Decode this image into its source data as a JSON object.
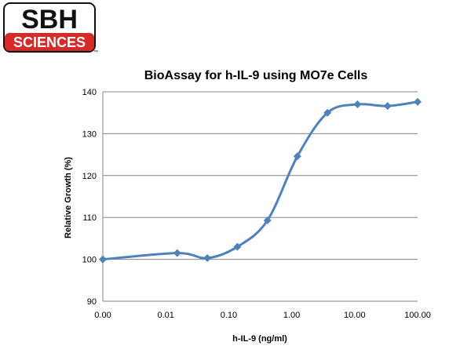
{
  "logo": {
    "line1": "SBH",
    "line2": "SCIENCES",
    "tm": "™",
    "colors": {
      "red": "#d52b2b",
      "black": "#111111"
    }
  },
  "chart_data": {
    "type": "line",
    "title": "BioAssay for h-IL-9 using MO7e Cells",
    "xlabel": "h-IL-9 (ng/ml)",
    "ylabel": "Relative Growth (%)",
    "x_ticks": [
      "0.00",
      "0.01",
      "0.10",
      "1.00",
      "10.00",
      "100.00"
    ],
    "y_ticks": [
      90,
      100,
      110,
      120,
      130,
      140
    ],
    "ylim": [
      90,
      140
    ],
    "x_scale": "log",
    "grid": "horizontal",
    "legend": "none",
    "series": [
      {
        "color": "#4f81bd",
        "marker": "diamond",
        "x": [
          0.001,
          0.0152,
          0.0457,
          0.137,
          0.412,
          1.23,
          3.7,
          11.1,
          33.3,
          100
        ],
        "values": [
          100,
          101.5,
          100.3,
          103,
          109.3,
          124.6,
          135,
          137,
          136.6,
          137.6
        ]
      }
    ]
  }
}
